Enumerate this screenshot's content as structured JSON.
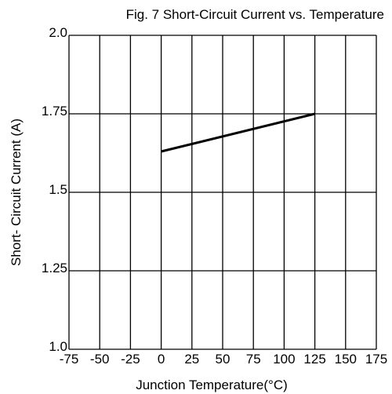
{
  "chart_data": {
    "type": "line",
    "title": "Fig. 7 Short-Circuit Current vs. Temperature",
    "x_label": "Junction Temperature(°C)",
    "y_label": "Short- Circuit Current (A)",
    "x": [
      0,
      125
    ],
    "series": [
      {
        "color": "#000000",
        "values": [
          1.63,
          1.75
        ]
      }
    ],
    "xlim": [
      -75,
      175
    ],
    "xticks": [
      -75,
      -50,
      -25,
      0,
      25,
      50,
      75,
      100,
      125,
      150,
      175
    ],
    "ylim": [
      1.0,
      2.0
    ],
    "yticks": [
      {
        "value": 1,
        "label": "1.0"
      },
      1.25,
      1.5,
      1.75,
      {
        "value": 2,
        "label": "2.0"
      }
    ],
    "grid": true
  }
}
